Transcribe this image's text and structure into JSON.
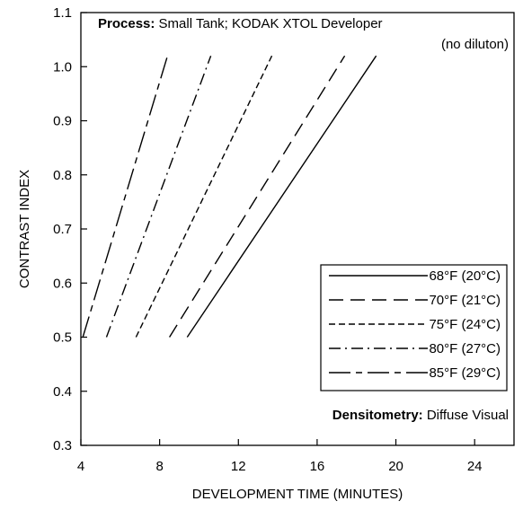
{
  "chart_data": {
    "type": "line",
    "annotations": {
      "process_label": "Process:",
      "process_text": " Small Tank; KODAK XTOL Developer",
      "dilution_text": "(no diluton)",
      "densitometry_label": "Densitometry:",
      "densitometry_text": " Diffuse Visual"
    },
    "xlabel": "DEVELOPMENT TIME (MINUTES)",
    "ylabel": "CONTRAST INDEX",
    "xlim": [
      4,
      26
    ],
    "ylim": [
      0.3,
      1.1
    ],
    "x_ticks": [
      4,
      8,
      12,
      16,
      20,
      24
    ],
    "x_tick_labels": [
      "4",
      "8",
      "12",
      "16",
      "20",
      "24"
    ],
    "y_ticks": [
      0.3,
      0.4,
      0.5,
      0.6,
      0.7,
      0.8,
      0.9,
      1.0,
      1.1
    ],
    "y_tick_labels": [
      "0.3",
      "0.4",
      "0.5",
      "0.6",
      "0.7",
      "0.8",
      "0.9",
      "1.0",
      "1.1"
    ],
    "grid": false,
    "legend_position": "right-middle",
    "series": [
      {
        "name": "68°F (20°C)",
        "dash": "solid",
        "x": [
          9.4,
          19.0
        ],
        "y": [
          0.5,
          1.02
        ]
      },
      {
        "name": "70°F (21°C)",
        "dash": "long-dash",
        "x": [
          8.5,
          17.4
        ],
        "y": [
          0.5,
          1.02
        ]
      },
      {
        "name": "75°F (24°C)",
        "dash": "short-dash",
        "x": [
          6.8,
          13.7
        ],
        "y": [
          0.5,
          1.02
        ]
      },
      {
        "name": "80°F (27°C)",
        "dash": "dash-dot",
        "x": [
          5.3,
          10.6
        ],
        "y": [
          0.5,
          1.02
        ]
      },
      {
        "name": "85°F (29°C)",
        "dash": "long-short",
        "x": [
          4.1,
          8.4
        ],
        "y": [
          0.5,
          1.02
        ]
      }
    ]
  }
}
